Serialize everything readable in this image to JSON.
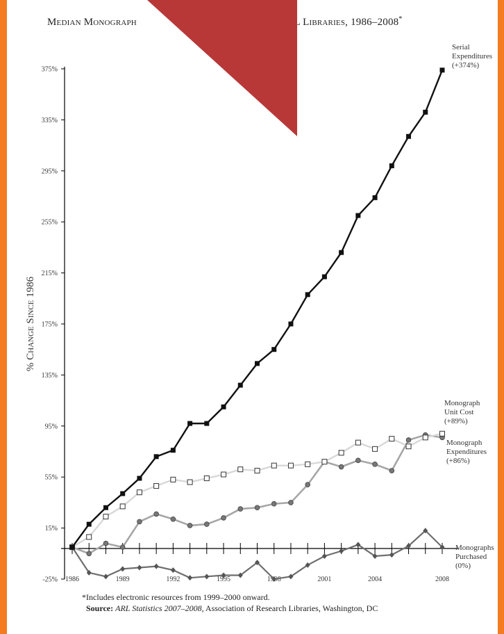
{
  "chart_data": {
    "type": "line",
    "title_main": "Median Monograph",
    "title_tail": "in ARL Libraries, 1986–2008",
    "title_mark": "*",
    "ylabel": "% Change Since 1986",
    "ylim": [
      -25,
      375
    ],
    "yticks": [
      "375%",
      "335%",
      "295%",
      "255%",
      "215%",
      "175%",
      "135%",
      "95%",
      "55%",
      "15%",
      "-25%"
    ],
    "ytick_values": [
      375,
      335,
      295,
      255,
      215,
      175,
      135,
      95,
      55,
      15,
      -25
    ],
    "xlim": [
      1986,
      2008
    ],
    "xtick_labels": [
      "1986",
      "1989",
      "1992",
      "1995",
      "1998",
      "2001",
      "2004",
      "2008"
    ],
    "xtick_values": [
      1986,
      1989,
      1992,
      1995,
      1998,
      2001,
      2004,
      2008
    ],
    "x": [
      1986,
      1987,
      1988,
      1989,
      1990,
      1991,
      1992,
      1993,
      1994,
      1995,
      1996,
      1997,
      1998,
      1999,
      2000,
      2001,
      2002,
      2003,
      2004,
      2005,
      2006,
      2007,
      2008
    ],
    "series": [
      {
        "label_lines": [
          "Serial",
          "Expenditures",
          "(+374%)"
        ],
        "marker": "square-filled",
        "color": "#111111",
        "values": [
          0,
          18,
          31,
          42,
          54,
          71,
          76,
          97,
          97,
          110,
          127,
          144,
          155,
          175,
          198,
          212,
          231,
          260,
          274,
          299,
          322,
          341,
          374
        ]
      },
      {
        "label_lines": [
          "Monograph",
          "Unit Cost",
          "(+89%)"
        ],
        "marker": "square-open",
        "color": "#d8d8d8",
        "values": [
          0,
          8,
          24,
          32,
          43,
          48,
          53,
          51,
          54,
          57,
          61,
          60,
          64,
          64,
          65,
          67,
          74,
          82,
          77,
          85,
          79,
          86,
          89
        ]
      },
      {
        "label_lines": [
          "Monograph",
          "Expenditures",
          "(+86%)"
        ],
        "marker": "circle",
        "color": "#a6a6a6",
        "values": [
          0,
          -5,
          3,
          0,
          20,
          26,
          22,
          17,
          18,
          23,
          30,
          31,
          34,
          35,
          49,
          67,
          63,
          68,
          65,
          60,
          84,
          88,
          86
        ]
      },
      {
        "label_lines": [
          "Monographs",
          "Purchased",
          "(0%)"
        ],
        "marker": "diamond",
        "color": "#6e6e6e",
        "values": [
          0,
          -20,
          -23,
          -17,
          -16,
          -15,
          -18,
          -24,
          -23,
          -22,
          -22,
          -12,
          -25,
          -23,
          -14,
          -7,
          -3,
          2,
          -7,
          -6,
          1,
          13,
          0
        ]
      }
    ],
    "footnote": "*Includes electronic resources from 1999–2000 onward.",
    "source_label": "Source:",
    "source_title": "ARL Statistics 2007–2008",
    "source_rest": ", Association of Research Libraries, Washington, DC"
  },
  "colors": {
    "frame": "#f47b20",
    "overlay": "#b83838",
    "axis": "#000000"
  }
}
